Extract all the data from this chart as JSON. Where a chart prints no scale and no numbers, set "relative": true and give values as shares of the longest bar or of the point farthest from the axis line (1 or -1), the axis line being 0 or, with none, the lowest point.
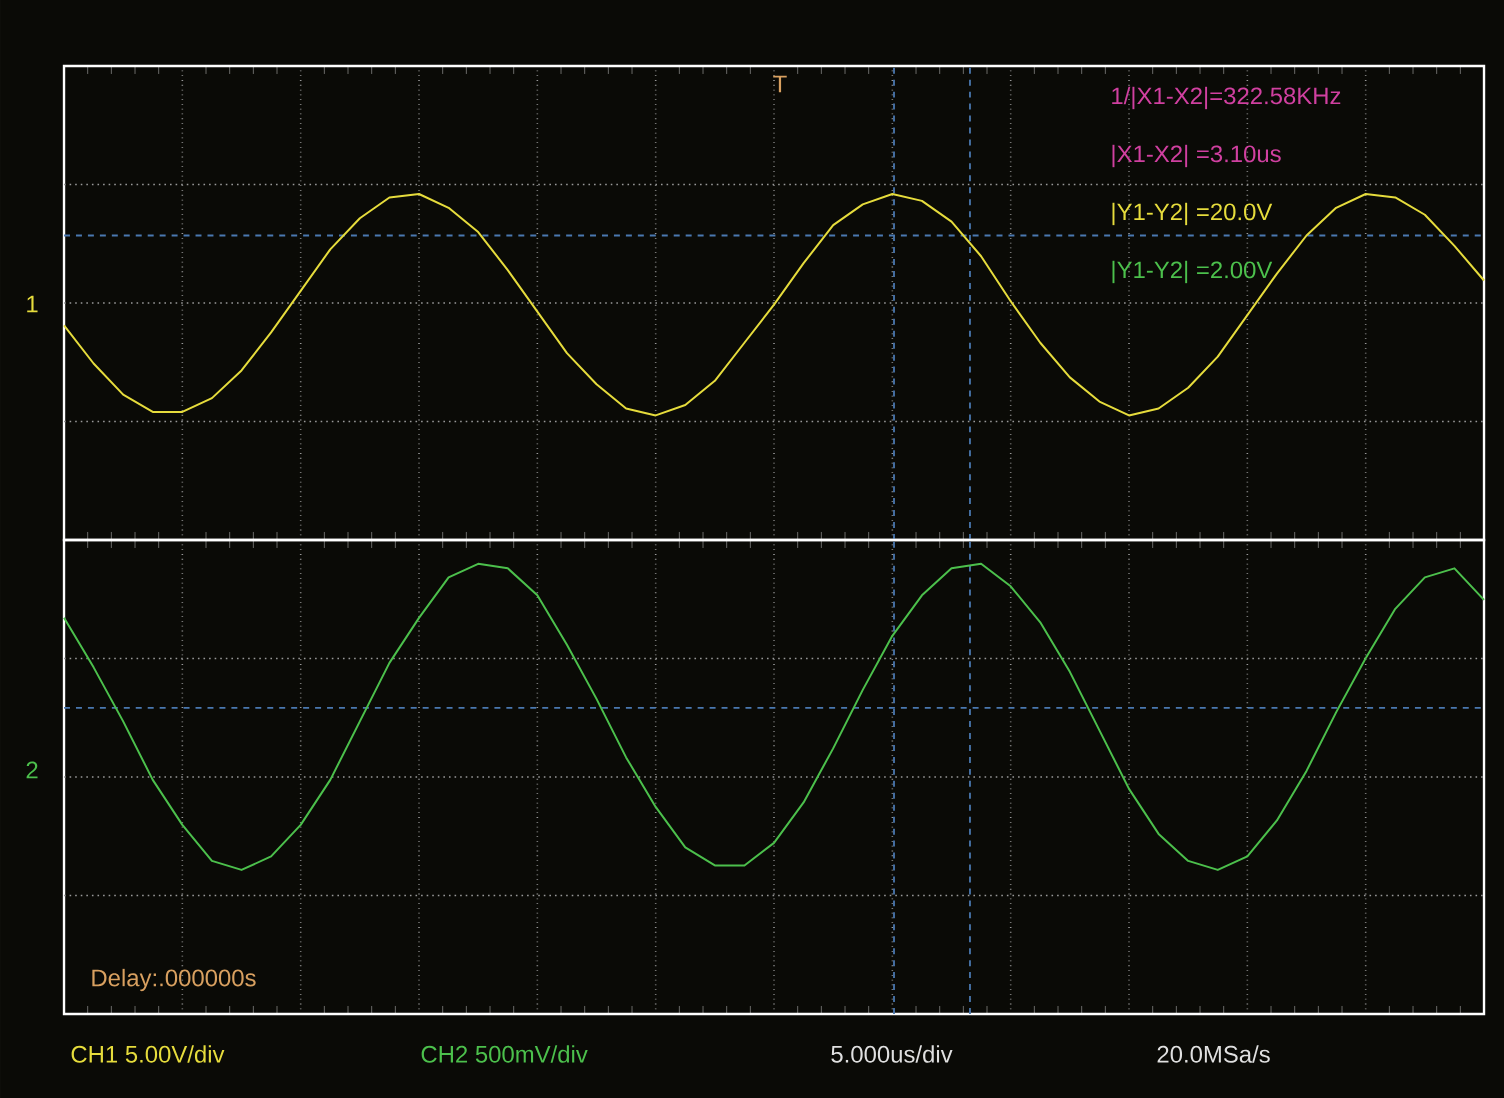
{
  "chart_data": [
    {
      "type": "line",
      "relative": true,
      "grid": true,
      "marker": "none",
      "line_style": "solid",
      "categories": [
        null,
        null,
        null,
        null,
        null,
        null,
        null,
        null,
        null,
        null,
        null,
        null,
        null,
        null,
        null,
        null,
        null,
        null,
        null,
        null,
        null,
        null,
        null,
        null,
        null,
        null,
        null,
        null,
        null,
        null,
        null,
        null,
        null,
        null,
        null,
        null,
        null,
        null,
        null,
        null,
        null,
        null,
        null,
        null,
        null,
        null,
        null,
        null,
        null
      ],
      "series": [
        {
          "color": "#e6dc3c",
          "values": [
            0.62,
            0.51,
            0.42,
            0.37,
            0.37,
            0.41,
            0.49,
            0.6,
            0.72,
            0.84,
            0.93,
            0.99,
            1.0,
            0.96,
            0.89,
            0.78,
            0.66,
            0.54,
            0.45,
            0.38,
            0.36,
            0.39,
            0.46,
            0.57,
            0.68,
            0.8,
            0.91,
            0.97,
            1.0,
            0.98,
            0.92,
            0.82,
            0.69,
            0.57,
            0.47,
            0.4,
            0.36,
            0.38,
            0.44,
            0.53,
            0.65,
            0.77,
            0.88,
            0.96,
            1.0,
            0.99,
            0.94,
            0.85,
            0.75
          ]
        }
      ],
      "ref_lines": [
        {
          "axis": "y",
          "value": 0.88,
          "color": "#4a78b0",
          "line_style": "dashed"
        }
      ],
      "annotations": [
        "1/|X1-X2|=322.58KHz",
        "|X1-X2|  =3.10us",
        "|Y1-Y2|  =20.0V",
        "|Y1-Y2|  =2.00V",
        "1",
        "T"
      ]
    },
    {
      "type": "line",
      "relative": true,
      "grid": true,
      "marker": "none",
      "line_style": "solid",
      "categories": [
        null,
        null,
        null,
        null,
        null,
        null,
        null,
        null,
        null,
        null,
        null,
        null,
        null,
        null,
        null,
        null,
        null,
        null,
        null,
        null,
        null,
        null,
        null,
        null,
        null,
        null,
        null,
        null,
        null,
        null,
        null,
        null,
        null,
        null,
        null,
        null,
        null,
        null,
        null,
        null,
        null,
        null,
        null,
        null,
        null,
        null,
        null,
        null,
        null
      ],
      "series": [
        {
          "color": "#4cc04c",
          "values": [
            0.88,
            0.77,
            0.65,
            0.52,
            0.42,
            0.34,
            0.32,
            0.35,
            0.42,
            0.52,
            0.65,
            0.78,
            0.88,
            0.97,
            1.0,
            0.99,
            0.93,
            0.82,
            0.7,
            0.57,
            0.46,
            0.37,
            0.33,
            0.33,
            0.38,
            0.47,
            0.59,
            0.72,
            0.84,
            0.93,
            0.99,
            1.0,
            0.95,
            0.87,
            0.76,
            0.63,
            0.5,
            0.4,
            0.34,
            0.32,
            0.35,
            0.43,
            0.54,
            0.67,
            0.79,
            0.9,
            0.97,
            0.99,
            0.92
          ]
        }
      ],
      "ref_lines": [
        {
          "axis": "y",
          "value": 0.68,
          "color": "#4a78b0",
          "line_style": "dashed"
        }
      ],
      "annotations": [
        "2",
        "Delay:.000000s",
        "CH1 5.00V/div",
        "CH2 500mV/div",
        "5.000us/div",
        "20.0MSa/s"
      ]
    }
  ]
}
